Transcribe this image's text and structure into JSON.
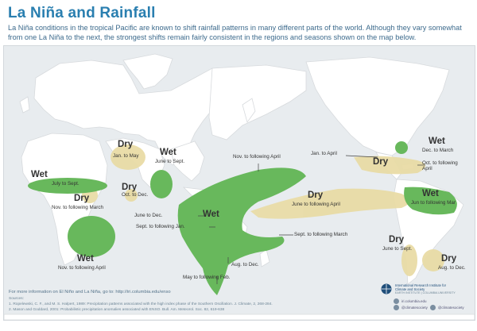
{
  "title": "La Niña and Rainfall",
  "intro": "La Niña conditions in the tropical Pacific are known to shift rainfall patterns in many different parts of the world. Although they vary somewhat from one La Niña to the next, the strongest shifts remain fairly consistent in the regions and seasons shown on the map below.",
  "colors": {
    "wet": "#68b85c",
    "dry": "#e9dca6",
    "land": "#ffffff",
    "ocean": "#e8ecef",
    "title": "#2a7fb0"
  },
  "regions": {
    "sahel_dry": {
      "type": "Dry",
      "season": "Jan. to May"
    },
    "india_wet": {
      "type": "Wet",
      "season": "June to Sept."
    },
    "west_africa_wet": {
      "type": "Wet",
      "season": "July to Sept."
    },
    "east_africa_dry": {
      "type": "Dry",
      "season": "Nov. to following March"
    },
    "southern_india_dry": {
      "type": "Dry",
      "season": "Oct. to Dec."
    },
    "southern_africa_wet": {
      "type": "Wet",
      "season": "Nov. to following April"
    },
    "maritime_wet": {
      "type": "Wet"
    },
    "maritime_nov": "Nov. to following April",
    "maritime_june": "June to Dec.",
    "maritime_sept_jan": "Sept. to following Jan.",
    "maritime_aug": "Aug. to Dec.",
    "maritime_may": "May to following Feb.",
    "maritime_sept_march": "Sept. to following March",
    "central_pacific_dry": {
      "type": "Dry",
      "season": "June to following April"
    },
    "us_south_dry": {
      "type": "Dry",
      "season": "Jan. to April"
    },
    "us_northeast_wet": {
      "type": "Wet",
      "season": "Dec. to March"
    },
    "us_oct": "Oct. to following April",
    "sa_north_wet": {
      "type": "Wet",
      "season": "Jun to following Mar"
    },
    "chile_dry": {
      "type": "Dry",
      "season": "June to Sept."
    },
    "argentina_dry": {
      "type": "Dry",
      "season": "Aug. to Dec."
    }
  },
  "footer": {
    "more_info": "For more information on El Niño and La Niña, go to: http://iri.columbia.edu/enso",
    "sources": "Sources:",
    "source1": "1. Ropelewski, C. F., and M. S. Halpert, 1989: Precipitation patterns associated with the high index phase of the Southern Oscillation. J. Climate, 2, 268-284.",
    "source2": "2. Mason and Goddard, 2001: Probabilistic precipitation anomalies associated with ENSO. Bull. Am. Meteorol. Soc. 82, 619-638",
    "logo_text": "International Research Institute for Climate and Society",
    "logo_sub": "EARTH INSTITUTE | COLUMBIA UNIVERSITY",
    "social1": "iri.columbia.edu",
    "social2": "@climatesociety",
    "social3": "@climatesociety"
  }
}
